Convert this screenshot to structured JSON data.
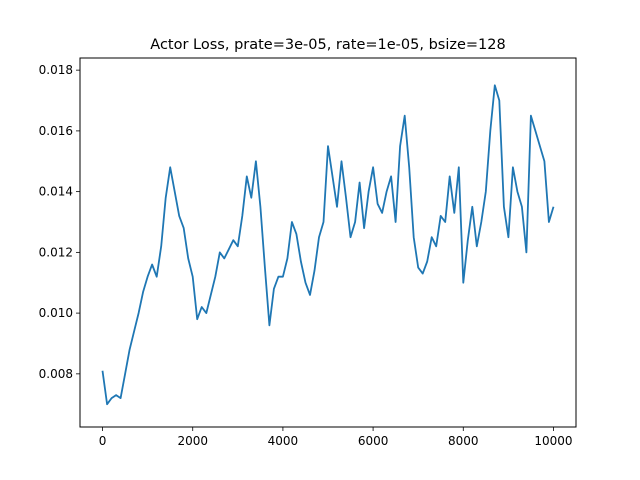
{
  "chart_data": {
    "type": "line",
    "title": "Actor Loss, prate=3e-05, rate=1e-05, bsize=128",
    "xlabel": "",
    "ylabel": "",
    "xlim": [
      -500,
      10500
    ],
    "ylim": [
      0.00625,
      0.0184
    ],
    "xticks": [
      0,
      2000,
      4000,
      6000,
      8000,
      10000
    ],
    "yticks": [
      0.008,
      0.01,
      0.012,
      0.014,
      0.016,
      0.018
    ],
    "xtick_labels": [
      "0",
      "2000",
      "4000",
      "6000",
      "8000",
      "10000"
    ],
    "ytick_labels": [
      "0.008",
      "0.010",
      "0.012",
      "0.014",
      "0.016",
      "0.018"
    ],
    "grid": false,
    "series": [
      {
        "color": "#1f77b4",
        "x": [
          0,
          100,
          200,
          300,
          400,
          500,
          600,
          700,
          800,
          900,
          1000,
          1100,
          1200,
          1300,
          1400,
          1500,
          1600,
          1700,
          1800,
          1900,
          2000,
          2100,
          2200,
          2300,
          2400,
          2500,
          2600,
          2700,
          2800,
          2900,
          3000,
          3100,
          3200,
          3300,
          3400,
          3500,
          3600,
          3700,
          3800,
          3900,
          4000,
          4100,
          4200,
          4300,
          4400,
          4500,
          4600,
          4700,
          4800,
          4900,
          5000,
          5100,
          5200,
          5300,
          5400,
          5500,
          5600,
          5700,
          5800,
          5900,
          6000,
          6100,
          6200,
          6300,
          6400,
          6500,
          6600,
          6700,
          6800,
          6900,
          7000,
          7100,
          7200,
          7300,
          7400,
          7500,
          7600,
          7700,
          7800,
          7900,
          8000,
          8100,
          8200,
          8300,
          8400,
          8500,
          8600,
          8700,
          8800,
          8900,
          9000,
          9100,
          9200,
          9300,
          9400,
          9500,
          9600,
          9700,
          9800,
          9900,
          10000
        ],
        "y": [
          0.0081,
          0.007,
          0.0072,
          0.0073,
          0.0072,
          0.008,
          0.0088,
          0.0094,
          0.01,
          0.0107,
          0.0112,
          0.0116,
          0.0112,
          0.0122,
          0.0138,
          0.0148,
          0.014,
          0.0132,
          0.0128,
          0.0118,
          0.0112,
          0.0098,
          0.0102,
          0.01,
          0.0106,
          0.0112,
          0.012,
          0.0118,
          0.0121,
          0.0124,
          0.0122,
          0.0132,
          0.0145,
          0.0138,
          0.015,
          0.0135,
          0.0115,
          0.0096,
          0.0108,
          0.0112,
          0.0112,
          0.0118,
          0.013,
          0.0126,
          0.0117,
          0.011,
          0.0106,
          0.0114,
          0.0125,
          0.013,
          0.0155,
          0.0145,
          0.0135,
          0.015,
          0.0138,
          0.0125,
          0.013,
          0.0143,
          0.0128,
          0.014,
          0.0148,
          0.0136,
          0.0133,
          0.014,
          0.0145,
          0.013,
          0.0155,
          0.0165,
          0.0148,
          0.0125,
          0.0115,
          0.0113,
          0.0117,
          0.0125,
          0.0122,
          0.0132,
          0.013,
          0.0145,
          0.0133,
          0.0148,
          0.011,
          0.0124,
          0.0135,
          0.0122,
          0.013,
          0.014,
          0.016,
          0.0175,
          0.017,
          0.0135,
          0.0125,
          0.0148,
          0.014,
          0.0135,
          0.012,
          0.0165,
          0.016,
          0.0155,
          0.015,
          0.013,
          0.0135
        ]
      }
    ]
  }
}
